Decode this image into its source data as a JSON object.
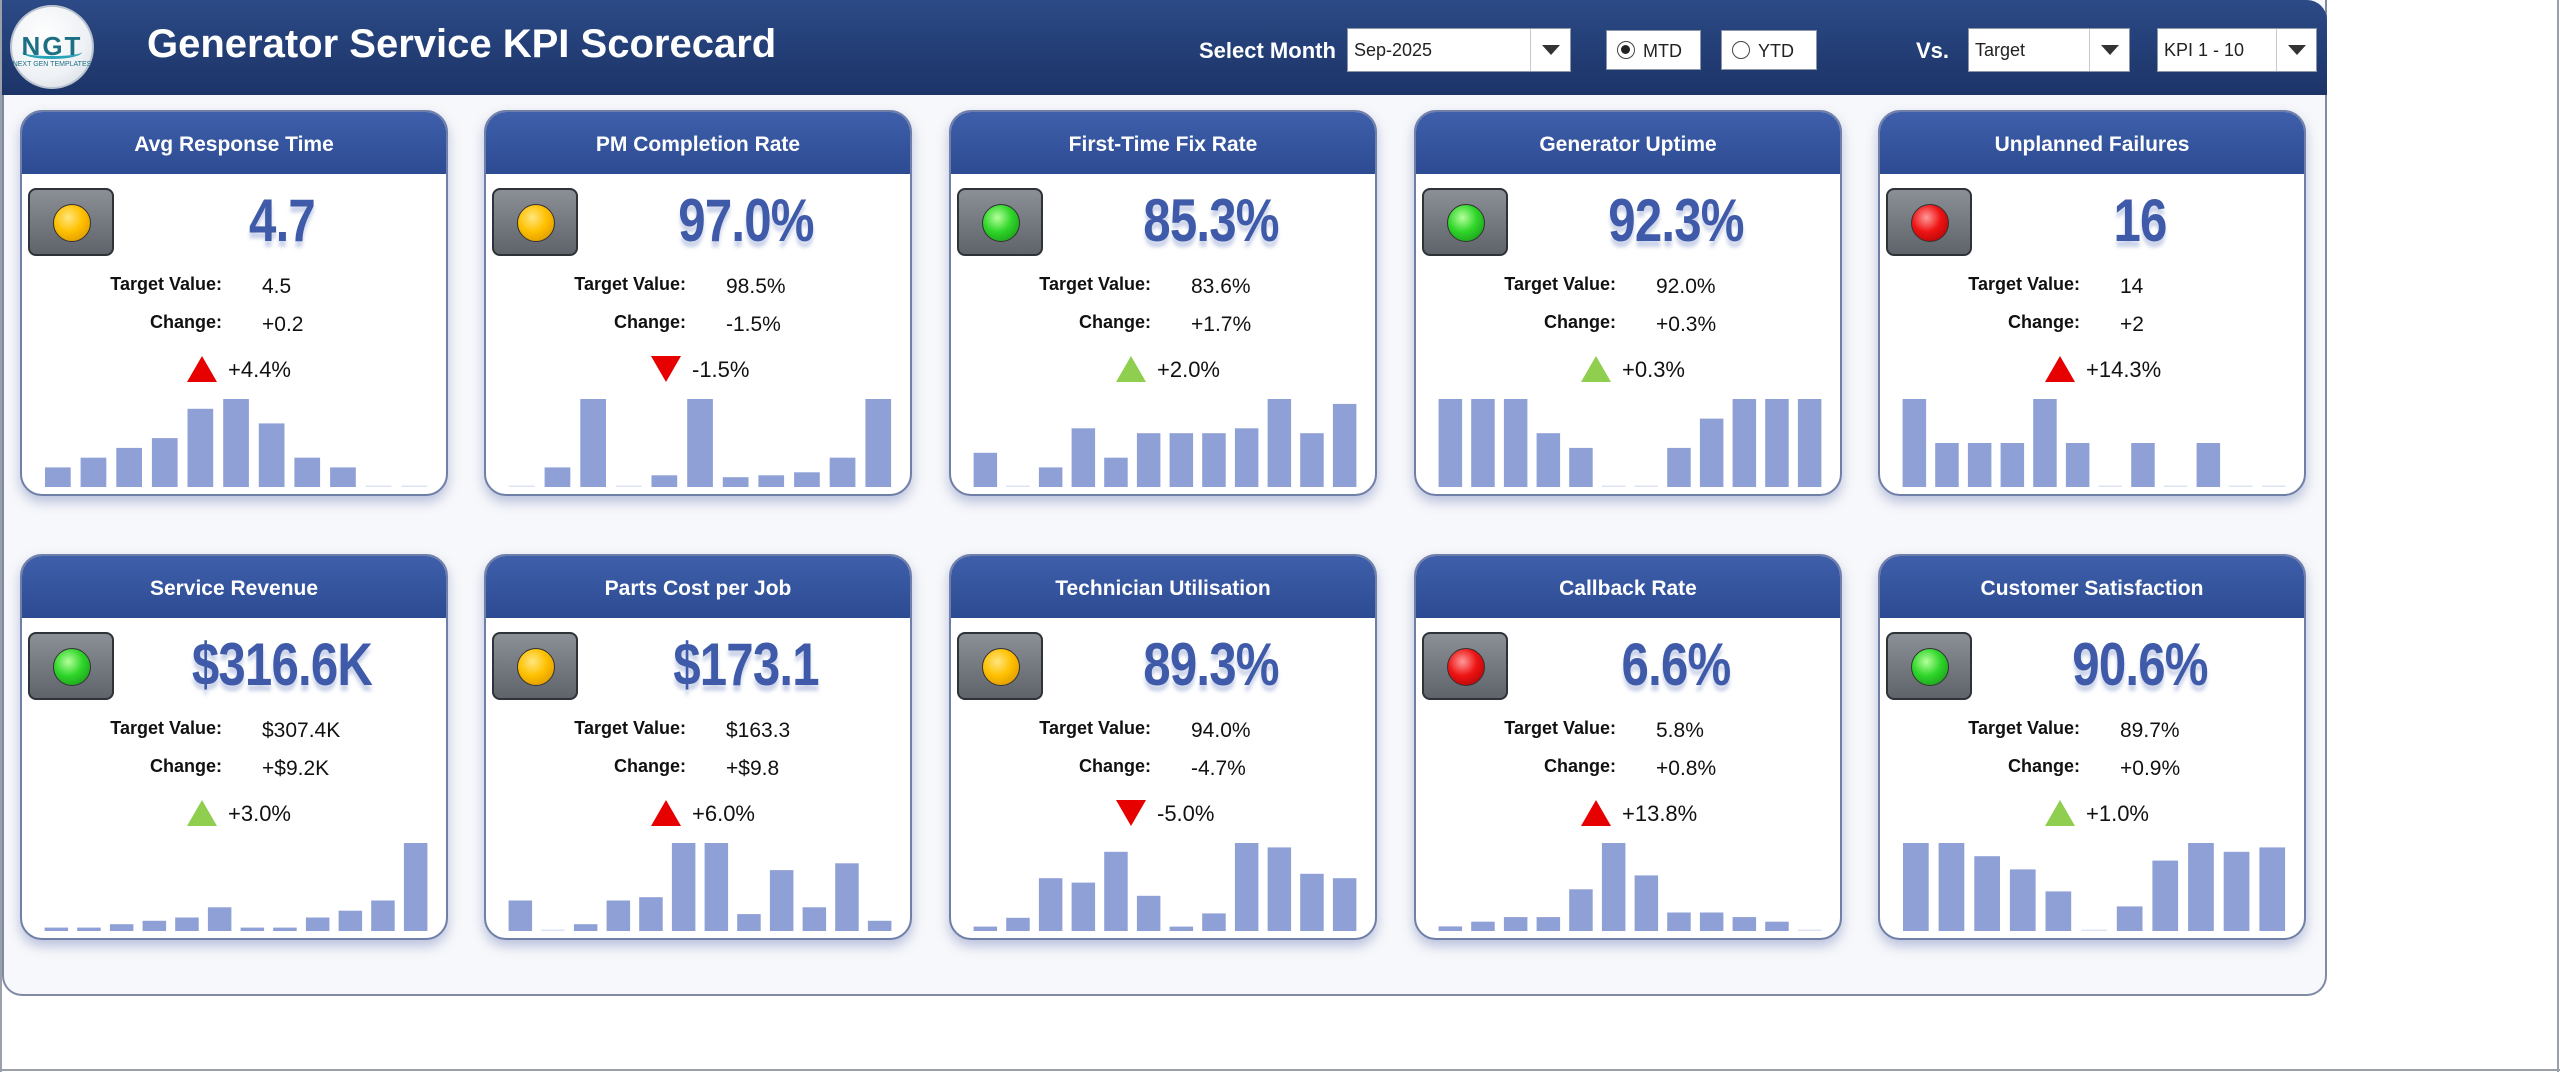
{
  "header": {
    "title": "Generator Service KPI Scorecard",
    "logo": {
      "mark": "NGT",
      "sub": "NEXT GEN TEMPLATES"
    },
    "select_month_label": "Select Month",
    "month_value": "Sep-2025",
    "mtd_label": "MTD",
    "ytd_label": "YTD",
    "period_selected": "MTD",
    "vs_label": "Vs.",
    "vs_value": "Target",
    "kpi_range_value": "KPI 1 - 10"
  },
  "colors": {
    "header_bg": "#1c3468",
    "card_head": "#2c4b92",
    "value_text": "#3e5aa8",
    "bar": "#8fa0d6",
    "arrow_red": "#e60000",
    "arrow_green": "#8fce4f"
  },
  "labels": {
    "target": "Target Value:",
    "change": "Change:"
  },
  "cards": [
    {
      "title": "Avg Response Time",
      "status": "yellow",
      "value": "4.7",
      "target": "4.5",
      "change": "+0.2",
      "arrow": "up-red",
      "pct": "+4.4%",
      "trend": [
        2,
        3,
        4,
        5,
        8,
        9,
        6.5,
        3,
        2,
        0,
        0
      ]
    },
    {
      "title": "PM Completion Rate",
      "status": "yellow",
      "value": "97.0%",
      "target": "98.5%",
      "change": "-1.5%",
      "arrow": "down-red",
      "pct": "-1.5%",
      "trend": [
        0,
        2,
        9,
        0,
        1.2,
        9,
        1,
        1.2,
        1.5,
        3,
        9
      ]
    },
    {
      "title": "First-Time Fix Rate",
      "status": "green",
      "value": "85.3%",
      "target": "83.6%",
      "change": "+1.7%",
      "arrow": "up-green",
      "pct": "+2.0%",
      "trend": [
        3.5,
        0,
        2,
        6,
        3,
        5.5,
        5.5,
        5.5,
        6,
        9,
        5.5,
        8.5
      ]
    },
    {
      "title": "Generator Uptime",
      "status": "green",
      "value": "92.3%",
      "target": "92.0%",
      "change": "+0.3%",
      "arrow": "up-green",
      "pct": "+0.3%",
      "trend": [
        9,
        9,
        9,
        5.5,
        4,
        0,
        0,
        4,
        7,
        9,
        9,
        9
      ]
    },
    {
      "title": "Unplanned Failures",
      "status": "red",
      "value": "16",
      "target": "14",
      "change": "+2",
      "arrow": "up-red",
      "pct": "+14.3%",
      "trend": [
        9,
        4.5,
        4.5,
        4.5,
        9,
        4.5,
        0,
        4.5,
        0,
        4.5,
        0,
        0
      ]
    },
    {
      "title": "Service Revenue",
      "status": "green",
      "value": "$316.6K",
      "target": "$307.4K",
      "change": "+$9.2K",
      "arrow": "up-green",
      "pct": "+3.0%",
      "trend": [
        0.5,
        0.5,
        1,
        1.5,
        2,
        3.5,
        0.5,
        0.5,
        2,
        3,
        4.5,
        13
      ]
    },
    {
      "title": "Parts Cost per Job",
      "status": "yellow",
      "value": "$173.1",
      "target": "$163.3",
      "change": "+$9.8",
      "arrow": "up-red",
      "pct": "+6.0%",
      "trend": [
        4.5,
        0,
        1,
        4.5,
        5,
        13,
        13,
        2.5,
        9,
        3.5,
        10,
        1.5
      ]
    },
    {
      "title": "Technician Utilisation",
      "status": "yellow",
      "value": "89.3%",
      "target": "94.0%",
      "change": "-4.7%",
      "arrow": "down-red",
      "pct": "-5.0%",
      "trend": [
        0.5,
        1.5,
        6,
        5.5,
        9,
        4,
        0.5,
        2,
        10,
        9.5,
        6.5,
        6
      ]
    },
    {
      "title": "Callback Rate",
      "status": "red",
      "value": "6.6%",
      "target": "5.8%",
      "change": "+0.8%",
      "arrow": "up-red",
      "pct": "+13.8%",
      "trend": [
        0.5,
        1,
        1.5,
        1.5,
        4.5,
        9.5,
        6,
        2,
        2,
        1.5,
        1,
        0
      ]
    },
    {
      "title": "Customer Satisfaction",
      "status": "green",
      "value": "90.6%",
      "target": "89.7%",
      "change": "+0.9%",
      "arrow": "up-green",
      "pct": "+1.0%",
      "trend": [
        10,
        10,
        8.5,
        7,
        4.5,
        0,
        2.8,
        8,
        10,
        9,
        9.5
      ]
    }
  ]
}
